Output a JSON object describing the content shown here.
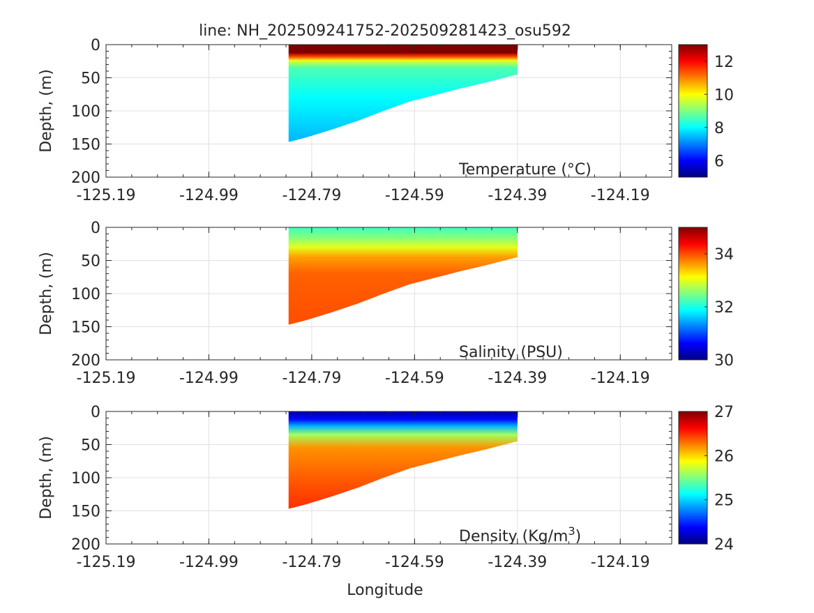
{
  "chart_data": [
    {
      "type": "heatmap",
      "title": "line: NH_202509241752-202509281423_osu592",
      "label": "Temperature (°C)",
      "label_main": "Temperature (",
      "label_sup": "o",
      "label_end": "C)",
      "ylabel": "Depth, (m)",
      "xlabel": "",
      "xlim": [
        -125.19,
        -124.09
      ],
      "ylim": [
        0,
        200
      ],
      "xticks": [
        "-125.19",
        "-124.99",
        "-124.79",
        "-124.59",
        "-124.39",
        "-124.19"
      ],
      "yticks": [
        "0",
        "50",
        "100",
        "150",
        "200"
      ],
      "clim": [
        5,
        13
      ],
      "cticks": [
        "6",
        "8",
        "10",
        "12"
      ],
      "profile": [
        {
          "depth": 0,
          "value": 13
        },
        {
          "depth": 12,
          "value": 13
        },
        {
          "depth": 18,
          "value": 11.5
        },
        {
          "depth": 24,
          "value": 9.8
        },
        {
          "depth": 35,
          "value": 8.6
        },
        {
          "depth": 80,
          "value": 8.0
        },
        {
          "depth": 150,
          "value": 7.4
        }
      ]
    },
    {
      "type": "heatmap",
      "label": "Salinity (PSU)",
      "label_main": "Salinity (PSU)",
      "ylabel": "Depth, (m)",
      "xlim": [
        -125.19,
        -124.09
      ],
      "ylim": [
        0,
        200
      ],
      "xticks": [
        "-125.19",
        "-124.99",
        "-124.79",
        "-124.59",
        "-124.39",
        "-124.19"
      ],
      "yticks": [
        "0",
        "50",
        "100",
        "150",
        "200"
      ],
      "clim": [
        30,
        35
      ],
      "cticks": [
        "30",
        "32",
        "34"
      ],
      "profile": [
        {
          "depth": 0,
          "value": 32.2
        },
        {
          "depth": 15,
          "value": 32.5
        },
        {
          "depth": 30,
          "value": 33.0
        },
        {
          "depth": 45,
          "value": 33.6
        },
        {
          "depth": 70,
          "value": 33.9
        },
        {
          "depth": 150,
          "value": 34.0
        }
      ]
    },
    {
      "type": "heatmap",
      "label": "Density (Kg/m³)",
      "label_main": "Density (Kg/m",
      "label_sup": "3",
      "label_end": ")",
      "ylabel": "Depth, (m)",
      "xlabel": "Longitude",
      "xlim": [
        -125.19,
        -124.09
      ],
      "ylim": [
        0,
        200
      ],
      "xticks": [
        "-125.19",
        "-124.99",
        "-124.79",
        "-124.59",
        "-124.39",
        "-124.19"
      ],
      "yticks": [
        "0",
        "50",
        "100",
        "150",
        "200"
      ],
      "clim": [
        24,
        27
      ],
      "cticks": [
        "24",
        "25",
        "26",
        "27"
      ],
      "profile": [
        {
          "depth": 0,
          "value": 24.1
        },
        {
          "depth": 12,
          "value": 24.4
        },
        {
          "depth": 22,
          "value": 24.9
        },
        {
          "depth": 35,
          "value": 25.6
        },
        {
          "depth": 55,
          "value": 26.2
        },
        {
          "depth": 100,
          "value": 26.35
        },
        {
          "depth": 150,
          "value": 26.5
        }
      ]
    }
  ],
  "section_bottom": [
    {
      "lon": -124.835,
      "depth": 147
    },
    {
      "lon": -124.8,
      "depth": 140
    },
    {
      "lon": -124.75,
      "depth": 128
    },
    {
      "lon": -124.7,
      "depth": 115
    },
    {
      "lon": -124.65,
      "depth": 100
    },
    {
      "lon": -124.6,
      "depth": 86
    },
    {
      "lon": -124.55,
      "depth": 76
    },
    {
      "lon": -124.5,
      "depth": 66
    },
    {
      "lon": -124.45,
      "depth": 57
    },
    {
      "lon": -124.39,
      "depth": 45
    }
  ],
  "section_lon_range": [
    -124.835,
    -124.39
  ]
}
